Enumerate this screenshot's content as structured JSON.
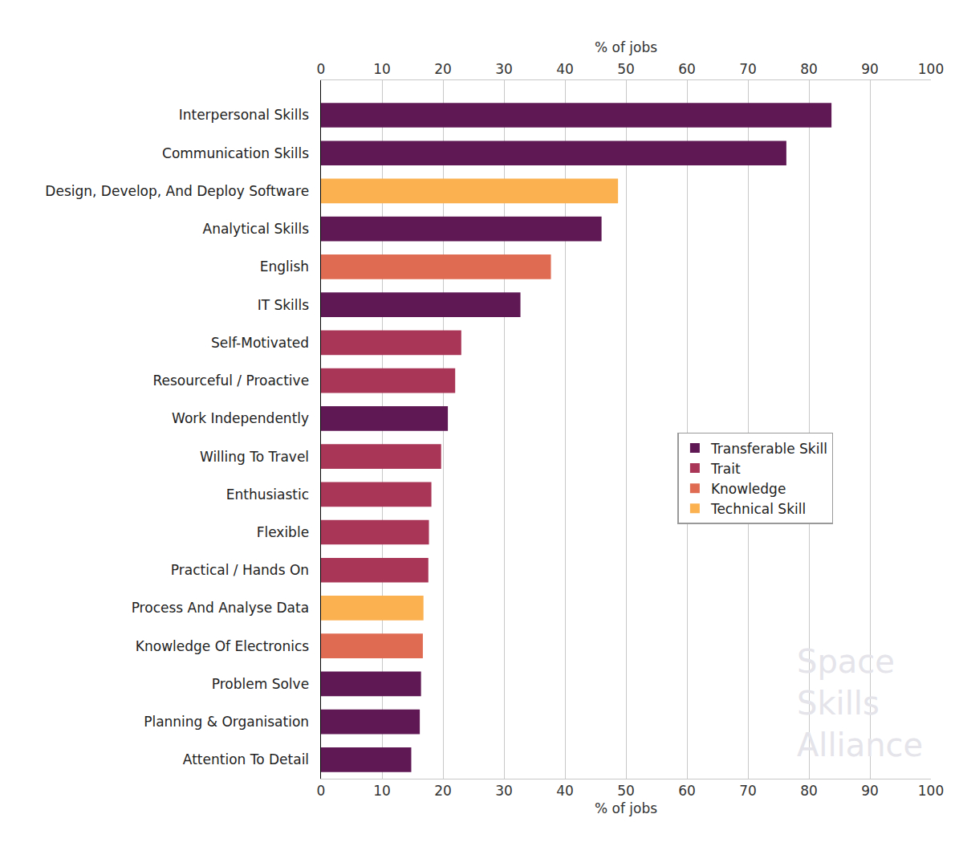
{
  "chart_data": {
    "type": "bar",
    "orientation": "horizontal",
    "xlabel": "% of jobs",
    "categories": [
      "Interpersonal Skills",
      "Communication Skills",
      "Design, Develop, And Deploy Software",
      "Analytical Skills",
      "English",
      "IT Skills",
      "Self-Motivated",
      "Resourceful / Proactive",
      "Work Independently",
      "Willing To Travel",
      "Enthusiastic",
      "Flexible",
      "Practical / Hands On",
      "Process And Analyse Data",
      "Knowledge Of Electronics",
      "Problem Solve",
      "Planning & Organisation",
      "Attention To Detail"
    ],
    "series": [
      {
        "name": "Transferable Skill",
        "color": "#5f1854",
        "values": [
          83.7,
          76.3,
          null,
          46,
          null,
          32.7,
          null,
          null,
          20.8,
          null,
          null,
          null,
          null,
          null,
          null,
          16.4,
          16.2,
          14.8
        ]
      },
      {
        "name": "Trait",
        "color": "#a93657",
        "values": [
          null,
          null,
          null,
          null,
          null,
          null,
          23,
          22,
          null,
          19.7,
          18.1,
          17.7,
          17.6,
          null,
          null,
          null,
          null,
          null
        ]
      },
      {
        "name": "Knowledge",
        "color": "#e06b53",
        "values": [
          null,
          null,
          null,
          null,
          37.7,
          null,
          null,
          null,
          null,
          null,
          null,
          null,
          null,
          null,
          16.7,
          null,
          null,
          null
        ]
      },
      {
        "name": "Technical Skill",
        "color": "#fbb150",
        "values": [
          null,
          null,
          48.7,
          null,
          null,
          null,
          null,
          null,
          null,
          null,
          null,
          null,
          null,
          16.8,
          null,
          null,
          null,
          null
        ]
      }
    ],
    "xlim": [
      0,
      100
    ],
    "xticks": [
      0,
      10,
      20,
      30,
      40,
      50,
      60,
      70,
      80,
      90,
      100
    ],
    "grid": true,
    "legend": "center right",
    "annotations": [
      "Space Skills Alliance"
    ]
  }
}
